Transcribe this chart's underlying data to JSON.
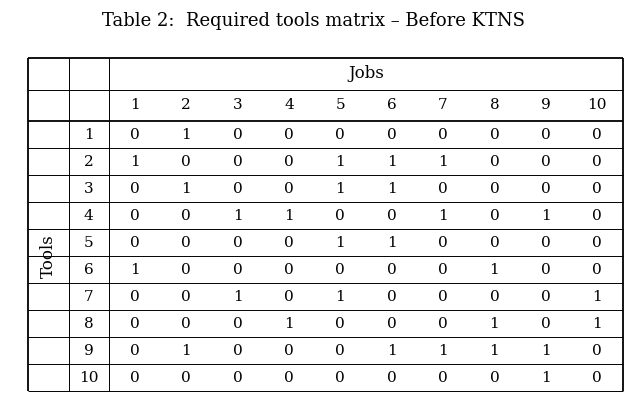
{
  "title": "Table 2:  Required tools matrix – Before KTNS",
  "col_header_label": "Jobs",
  "row_header_label": "Tools",
  "col_numbers": [
    "1",
    "2",
    "3",
    "4",
    "5",
    "6",
    "7",
    "8",
    "9",
    "10"
  ],
  "row_numbers": [
    "1",
    "2",
    "3",
    "4",
    "5",
    "6",
    "7",
    "8",
    "9",
    "10"
  ],
  "matrix": [
    [
      0,
      1,
      0,
      0,
      0,
      0,
      0,
      0,
      0,
      0
    ],
    [
      1,
      0,
      0,
      0,
      1,
      1,
      1,
      0,
      0,
      0
    ],
    [
      0,
      1,
      0,
      0,
      1,
      1,
      0,
      0,
      0,
      0
    ],
    [
      0,
      0,
      1,
      1,
      0,
      0,
      1,
      0,
      1,
      0
    ],
    [
      0,
      0,
      0,
      0,
      1,
      1,
      0,
      0,
      0,
      0
    ],
    [
      1,
      0,
      0,
      0,
      0,
      0,
      0,
      1,
      0,
      0
    ],
    [
      0,
      0,
      1,
      0,
      1,
      0,
      0,
      0,
      0,
      1
    ],
    [
      0,
      0,
      0,
      1,
      0,
      0,
      0,
      1,
      0,
      1
    ],
    [
      0,
      1,
      0,
      0,
      0,
      1,
      1,
      1,
      1,
      0
    ],
    [
      0,
      0,
      0,
      0,
      0,
      0,
      0,
      0,
      1,
      0
    ]
  ],
  "bg_color": "#ffffff",
  "text_color": "#000000",
  "line_color": "#000000",
  "font_family": "serif",
  "title_fontsize": 13,
  "cell_fontsize": 11,
  "header_fontsize": 12
}
